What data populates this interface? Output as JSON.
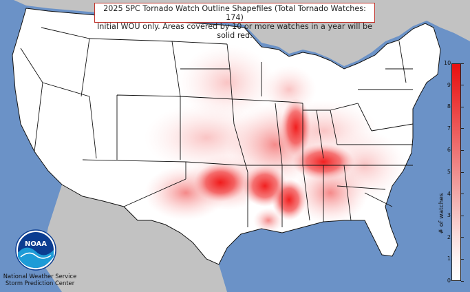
{
  "title": {
    "line1": "2025 SPC Tornado Watch Outline Shapefiles (Total Tornado Watches: 174)",
    "line2": "Initial WOU only. Areas covered by 10 or more watches in a year will be solid red."
  },
  "colorbar": {
    "label": "# of watches",
    "ticks": [
      "0",
      "1",
      "2",
      "3",
      "4",
      "5",
      "6",
      "7",
      "8",
      "9",
      "10"
    ],
    "min": 0,
    "max": 10,
    "low_color": "#ffffff",
    "high_color": "#e81010"
  },
  "logo": {
    "text": "NOAA",
    "icon": "noaa-logo-icon"
  },
  "agency": {
    "line1": "National Weather Service",
    "line2": "Storm Prediction Center"
  },
  "colors": {
    "ocean": "#6b92c7",
    "land_outside": "#c2c2c2",
    "us_land": "#ffffff",
    "border": "#111111",
    "frame": "#c0342c"
  }
}
